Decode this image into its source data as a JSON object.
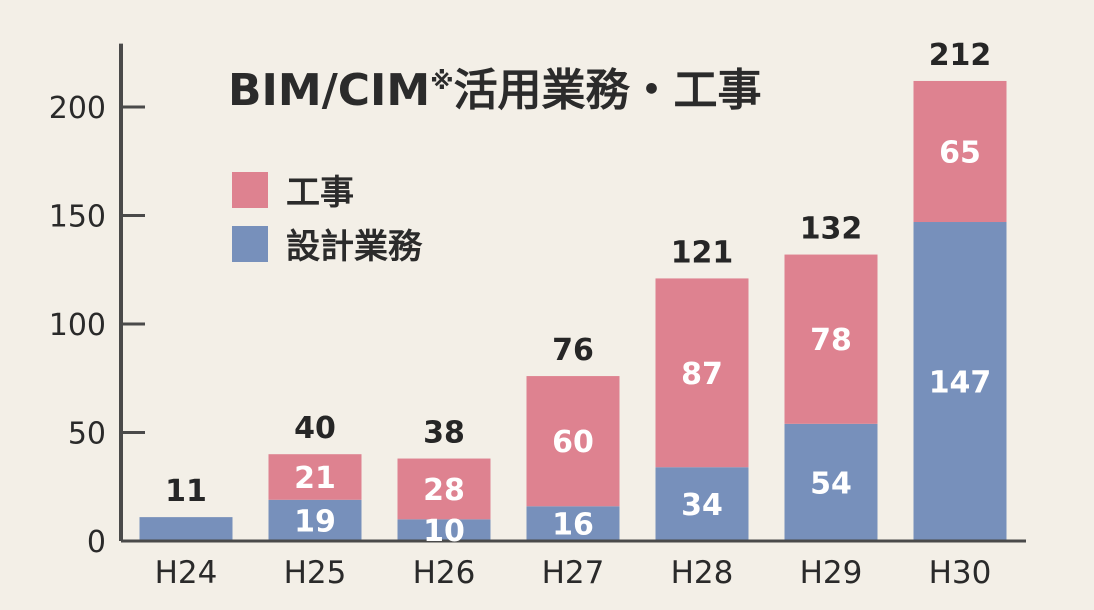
{
  "colors": {
    "background": "#f3efe7",
    "construction": "#de8290",
    "design": "#7790bb",
    "axis": "#4a4a4a"
  },
  "chart_data": {
    "type": "bar",
    "stacked": true,
    "title": "BIM/CIM",
    "title_mark": "※",
    "title_rest": "活用業務・工事",
    "categories": [
      "H24",
      "H25",
      "H26",
      "H27",
      "H28",
      "H29",
      "H30"
    ],
    "series": [
      {
        "name": "設計業務",
        "color": "#7790bb",
        "values": [
          11,
          19,
          10,
          16,
          34,
          54,
          147
        ]
      },
      {
        "name": "工事",
        "color": "#de8290",
        "values": [
          0,
          21,
          28,
          60,
          87,
          78,
          65
        ]
      }
    ],
    "totals": [
      11,
      40,
      38,
      76,
      121,
      132,
      212
    ],
    "ylim": [
      0,
      220
    ],
    "yticks": [
      0,
      50,
      100,
      150,
      200
    ],
    "legend_order": [
      "工事",
      "設計業務"
    ],
    "legend_position": "top-left",
    "grid": false
  }
}
